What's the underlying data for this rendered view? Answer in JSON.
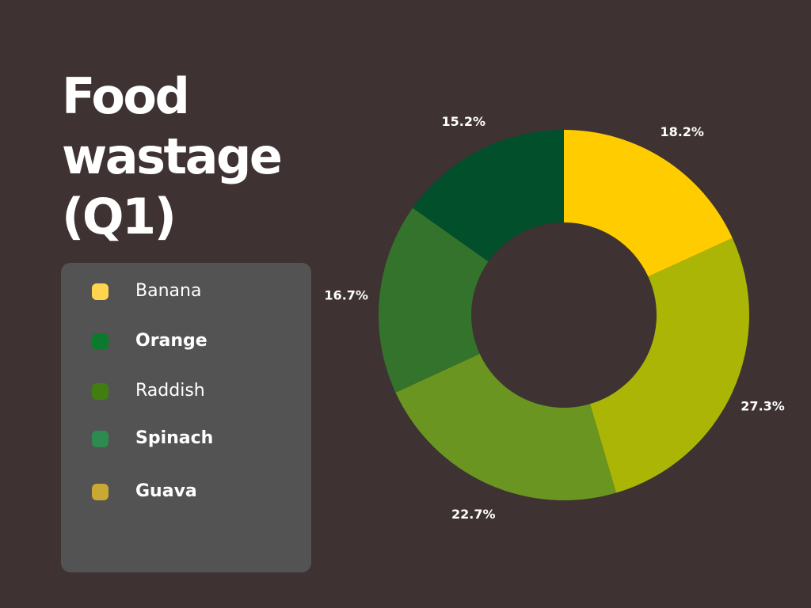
{
  "title_lines": [
    "Food",
    "wastage",
    "(Q1)"
  ],
  "legend": [
    {
      "label": "Banana",
      "color": "#ffd54f"
    },
    {
      "label": "Orange",
      "color": "#0b7a2c"
    },
    {
      "label": "Raddish",
      "color": "#3f7e0f"
    },
    {
      "label": "Spinach",
      "color": "#2e8b4f"
    },
    {
      "label": "Guava",
      "color": "#c9a834"
    }
  ],
  "chart_data": {
    "type": "donut",
    "title": "Food wastage (Q1)",
    "slices": [
      {
        "value": 18.2,
        "label": "18.2%",
        "color": "#ffcc00"
      },
      {
        "value": 27.3,
        "label": "27.3%",
        "color": "#abb506"
      },
      {
        "value": 22.7,
        "label": "22.7%",
        "color": "#6a9520"
      },
      {
        "value": 16.7,
        "label": "16.7%",
        "color": "#34732b"
      },
      {
        "value": 15.2,
        "label": "15.2%",
        "color": "#014f2b"
      }
    ],
    "start_angle_deg": 0,
    "direction": "clockwise"
  }
}
